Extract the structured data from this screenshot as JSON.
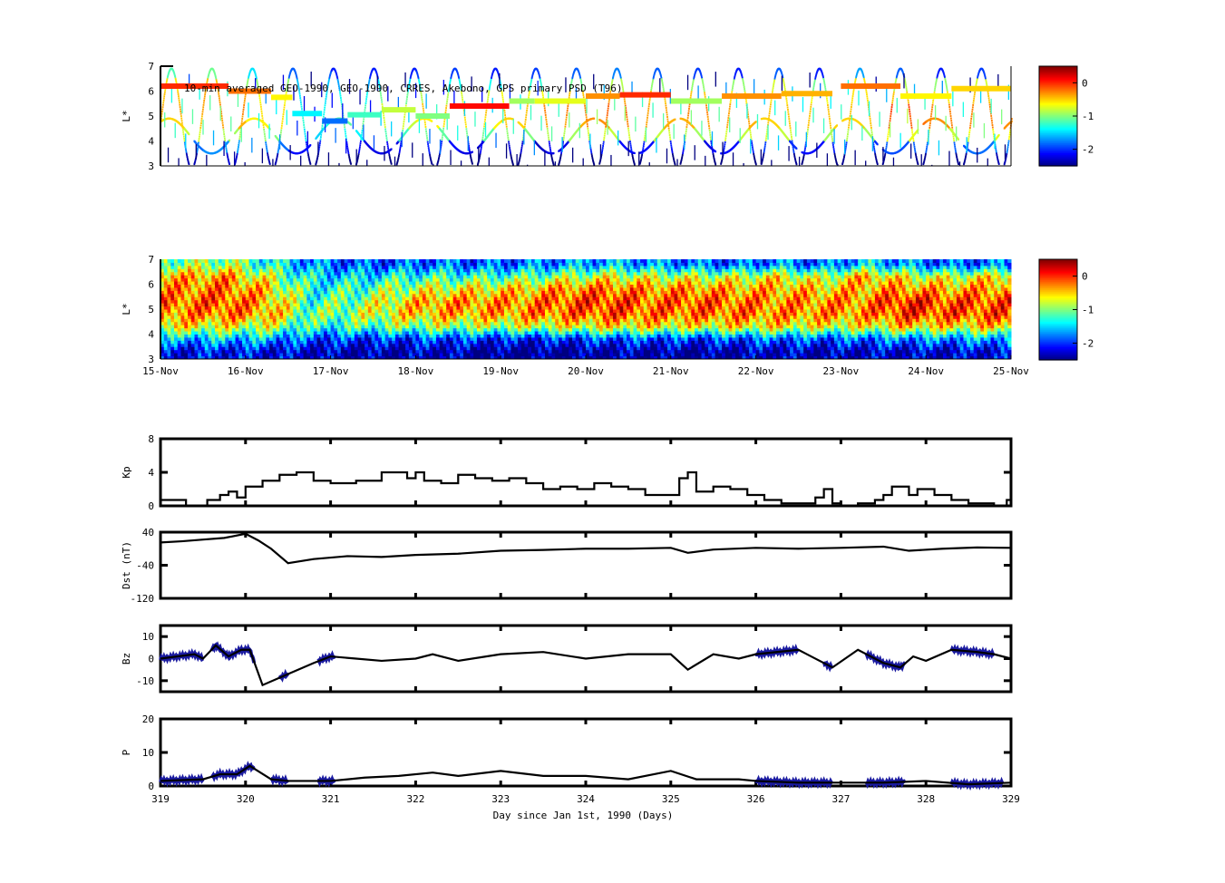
{
  "chart_data": [
    {
      "id": "psd-lstar",
      "type": "scatter",
      "title": "10-min averaged GEO-1990, GEO-1990, CRRES, Akebono, GPS  primary PSD (T96)",
      "ylabel": "L*",
      "ylim": [
        3,
        7
      ],
      "yticks": [
        "3",
        "4",
        "5",
        "6",
        "7"
      ],
      "colorbar": {
        "range": [
          -2.5,
          0.5
        ],
        "ticks": [
          "0",
          "-1",
          "-2"
        ],
        "colormap": "jet"
      },
      "geo_track": [
        [
          319,
          319.8,
          6.2,
          0.0
        ],
        [
          319.8,
          320.3,
          6.0,
          -0.2
        ],
        [
          320.3,
          320.55,
          5.75,
          -0.6
        ],
        [
          320.55,
          320.9,
          5.1,
          -1.4
        ],
        [
          320.9,
          321.2,
          4.8,
          -1.8
        ],
        [
          321.2,
          321.6,
          5.05,
          -1.2
        ],
        [
          321.6,
          322.0,
          5.25,
          -0.8
        ],
        [
          322.0,
          322.4,
          5.0,
          -1.0
        ],
        [
          322.4,
          323.1,
          5.4,
          0.1
        ],
        [
          323.1,
          323.4,
          5.6,
          -0.9
        ],
        [
          323.4,
          324.0,
          5.6,
          -0.7
        ],
        [
          324.0,
          324.4,
          5.8,
          -0.3
        ],
        [
          324.4,
          325.0,
          5.85,
          0.0
        ],
        [
          325.0,
          325.6,
          5.6,
          -0.9
        ],
        [
          325.6,
          326.3,
          5.8,
          -0.3
        ],
        [
          326.3,
          326.9,
          5.9,
          -0.4
        ],
        [
          327.0,
          327.7,
          6.2,
          -0.2
        ],
        [
          327.7,
          328.3,
          5.8,
          -0.6
        ],
        [
          328.3,
          329,
          6.1,
          -0.5
        ]
      ]
    },
    {
      "id": "psd-lstar-interp",
      "type": "heatmap",
      "ylabel": "L*",
      "ylim": [
        3,
        7
      ],
      "yticks": [
        "3",
        "4",
        "5",
        "6",
        "7"
      ],
      "xticks": [
        "15-Nov",
        "16-Nov",
        "17-Nov",
        "18-Nov",
        "19-Nov",
        "20-Nov",
        "21-Nov",
        "22-Nov",
        "23-Nov",
        "24-Nov",
        "25-Nov"
      ],
      "colorbar": {
        "range": [
          -2.5,
          0.5
        ],
        "ticks": [
          "0",
          "-1",
          "-2"
        ],
        "colormap": "jet"
      },
      "x_days": [
        319,
        319.5,
        320,
        320.5,
        321,
        321.5,
        322,
        322.5,
        323,
        323.5,
        324,
        324.5,
        325,
        325.5,
        326,
        326.5,
        327,
        327.5,
        328,
        328.5
      ],
      "l_bins": [
        3.0,
        3.5,
        4.0,
        4.5,
        5.0,
        5.5,
        6.0,
        6.5
      ],
      "values": [
        [
          -2.2,
          -1.6,
          -0.6,
          -0.3,
          -0.2,
          -0.3,
          -0.4,
          -1.0
        ],
        [
          -2.1,
          -1.5,
          -0.7,
          -0.2,
          -0.1,
          -0.2,
          -0.3,
          -0.9
        ],
        [
          -2.2,
          -1.6,
          -0.8,
          -0.4,
          -0.4,
          -0.5,
          -0.8,
          -1.3
        ],
        [
          -2.3,
          -1.9,
          -1.3,
          -1.1,
          -1.2,
          -1.3,
          -1.4,
          -1.7
        ],
        [
          -2.4,
          -2.0,
          -1.2,
          -0.9,
          -1.0,
          -1.2,
          -1.5,
          -1.9
        ],
        [
          -2.4,
          -2.0,
          -1.0,
          -0.6,
          -0.6,
          -0.9,
          -1.3,
          -1.9
        ],
        [
          -2.3,
          -1.9,
          -0.9,
          -0.4,
          -0.3,
          -0.7,
          -1.2,
          -1.8
        ],
        [
          -2.5,
          -2.0,
          -0.9,
          -0.4,
          -0.3,
          -0.6,
          -1.2,
          -1.9
        ],
        [
          -2.5,
          -2.1,
          -0.8,
          -0.3,
          -0.3,
          -0.5,
          -1.1,
          -1.8
        ],
        [
          -2.5,
          -2.0,
          -0.7,
          -0.2,
          -0.1,
          -0.3,
          -0.9,
          -1.7
        ],
        [
          -2.4,
          -1.9,
          -0.6,
          -0.1,
          0.0,
          -0.2,
          -0.7,
          -1.6
        ],
        [
          -2.4,
          -1.9,
          -0.6,
          -0.2,
          -0.2,
          -0.3,
          -0.8,
          -1.7
        ],
        [
          -2.5,
          -2.0,
          -0.7,
          -0.2,
          -0.1,
          -0.3,
          -0.8,
          -1.8
        ],
        [
          -2.4,
          -1.9,
          -0.6,
          -0.2,
          -0.2,
          -0.4,
          -0.8,
          -1.9
        ],
        [
          -2.3,
          -1.8,
          -0.6,
          -0.3,
          -0.3,
          -0.4,
          -0.6,
          -1.7
        ],
        [
          -2.4,
          -1.9,
          -0.7,
          -0.3,
          -0.3,
          -0.5,
          -0.9,
          -1.9
        ],
        [
          -2.3,
          -1.8,
          -0.7,
          -0.3,
          -0.3,
          -0.4,
          -0.4,
          -1.5
        ],
        [
          -2.3,
          -1.7,
          -0.5,
          0.0,
          0.1,
          -0.3,
          -0.7,
          -1.7
        ],
        [
          -2.3,
          -1.7,
          -0.6,
          -0.1,
          -0.1,
          -0.4,
          -0.8,
          -1.9
        ],
        [
          -2.2,
          -1.6,
          -0.5,
          -0.1,
          -0.1,
          -0.3,
          -0.6,
          -1.8
        ]
      ]
    },
    {
      "id": "kp",
      "type": "line",
      "ylabel": "Kp",
      "ylim": [
        0,
        8
      ],
      "yticks": [
        "0",
        "4",
        "8"
      ],
      "step": true,
      "x": [
        319,
        319.2,
        319.3,
        319.55,
        319.7,
        319.8,
        319.9,
        320.0,
        320.2,
        320.4,
        320.6,
        320.8,
        321.0,
        321.3,
        321.6,
        321.9,
        322.0,
        322.1,
        322.3,
        322.5,
        322.7,
        322.9,
        323.1,
        323.3,
        323.5,
        323.7,
        323.9,
        324.1,
        324.3,
        324.5,
        324.7,
        325.0,
        325.1,
        325.2,
        325.3,
        325.5,
        325.7,
        325.9,
        326.1,
        326.3,
        326.5,
        326.7,
        326.8,
        326.9,
        327.0,
        327.2,
        327.4,
        327.5,
        327.6,
        327.8,
        327.9,
        328.1,
        328.3,
        328.5,
        328.8,
        328.95
      ],
      "y": [
        0.7,
        0.7,
        0,
        0.7,
        1.3,
        1.7,
        1.0,
        2.3,
        3.0,
        3.7,
        4.0,
        3.0,
        2.7,
        3.0,
        4.0,
        3.3,
        4.0,
        3.0,
        2.7,
        3.7,
        3.3,
        3.0,
        3.3,
        2.7,
        2.0,
        2.3,
        2.0,
        2.7,
        2.3,
        2.0,
        1.3,
        1.3,
        3.3,
        4.0,
        1.7,
        2.3,
        2.0,
        1.3,
        0.7,
        0.3,
        0.3,
        1.0,
        2.0,
        0.3,
        0,
        0.3,
        0.7,
        1.3,
        2.3,
        1.3,
        2.0,
        1.3,
        0.7,
        0.3,
        0,
        0.7
      ]
    },
    {
      "id": "dst",
      "type": "line",
      "ylabel": "Dst (nT)",
      "ylim": [
        -120,
        40
      ],
      "yticks": [
        "-120",
        "-40",
        "40"
      ],
      "x": [
        319,
        319.25,
        319.5,
        319.75,
        320.0,
        320.15,
        320.3,
        320.5,
        320.8,
        321.2,
        321.6,
        322.0,
        322.5,
        323.0,
        323.5,
        324.0,
        324.5,
        325.0,
        325.2,
        325.5,
        326.0,
        326.5,
        327.0,
        327.5,
        327.8,
        328.2,
        328.6,
        329
      ],
      "y": [
        15,
        18,
        22,
        26,
        36,
        20,
        0,
        -35,
        -25,
        -18,
        -20,
        -15,
        -12,
        -5,
        -3,
        0,
        0,
        2,
        -10,
        -2,
        2,
        0,
        2,
        5,
        -5,
        0,
        3,
        2
      ]
    },
    {
      "id": "bz",
      "type": "line",
      "ylabel": "Bz",
      "ylim": [
        -15,
        15
      ],
      "yticks": [
        "-10",
        "0",
        "10"
      ],
      "x": [
        319,
        319.2,
        319.4,
        319.5,
        319.65,
        319.8,
        319.95,
        320.05,
        320.2,
        320.5,
        320.8,
        321.0,
        321.3,
        321.6,
        322.0,
        322.2,
        322.5,
        323.0,
        323.5,
        324.0,
        324.5,
        325.0,
        325.2,
        325.5,
        325.8,
        326.0,
        326.5,
        326.9,
        327.2,
        327.5,
        327.7,
        327.85,
        328.0,
        328.3,
        328.6,
        328.8,
        329
      ],
      "y": [
        0,
        1,
        2,
        0,
        6,
        1,
        4,
        4,
        -12,
        -7,
        -2,
        1,
        0,
        -1,
        0,
        2,
        -1,
        2,
        3,
        0,
        2,
        2,
        -5,
        2,
        0,
        2,
        4,
        -4,
        4,
        -2,
        -4,
        1,
        -1,
        4,
        3,
        2,
        0
      ],
      "highlight_ranges": [
        [
          319,
          319.5
        ],
        [
          319.6,
          320.1
        ],
        [
          320.4,
          320.5
        ],
        [
          320.85,
          321.05
        ],
        [
          326,
          326.5
        ],
        [
          326.8,
          326.9
        ],
        [
          327.3,
          327.75
        ],
        [
          328.3,
          328.8
        ]
      ],
      "highlight_color": "#1a1aa0"
    },
    {
      "id": "p",
      "type": "line",
      "ylabel": "P",
      "ylim": [
        0,
        20
      ],
      "yticks": [
        "0",
        "10",
        "20"
      ],
      "xticks": [
        "319",
        "320",
        "321",
        "322",
        "323",
        "324",
        "325",
        "326",
        "327",
        "328",
        "329"
      ],
      "xlabel": "Day since Jan 1st, 1990 (Days)",
      "x": [
        319,
        319.5,
        319.7,
        319.9,
        320.05,
        320.3,
        320.5,
        321,
        321.4,
        321.8,
        322.2,
        322.5,
        323,
        323.5,
        324,
        324.5,
        325,
        325.3,
        325.8,
        326,
        326.5,
        327,
        327.5,
        328,
        328.5,
        329
      ],
      "y": [
        1.5,
        2,
        3.5,
        3.5,
        6,
        2,
        1.5,
        1.5,
        2.5,
        3,
        4,
        3,
        4.5,
        3,
        3,
        2,
        4.5,
        2,
        2,
        1.5,
        1,
        1,
        1,
        1.5,
        0.5,
        1
      ],
      "highlight_ranges": [
        [
          319,
          319.5
        ],
        [
          319.6,
          320.1
        ],
        [
          320.3,
          320.5
        ],
        [
          320.85,
          321.05
        ],
        [
          326,
          326.9
        ],
        [
          327.3,
          327.75
        ],
        [
          328.3,
          328.9
        ]
      ],
      "highlight_color": "#1a1aa0"
    }
  ]
}
